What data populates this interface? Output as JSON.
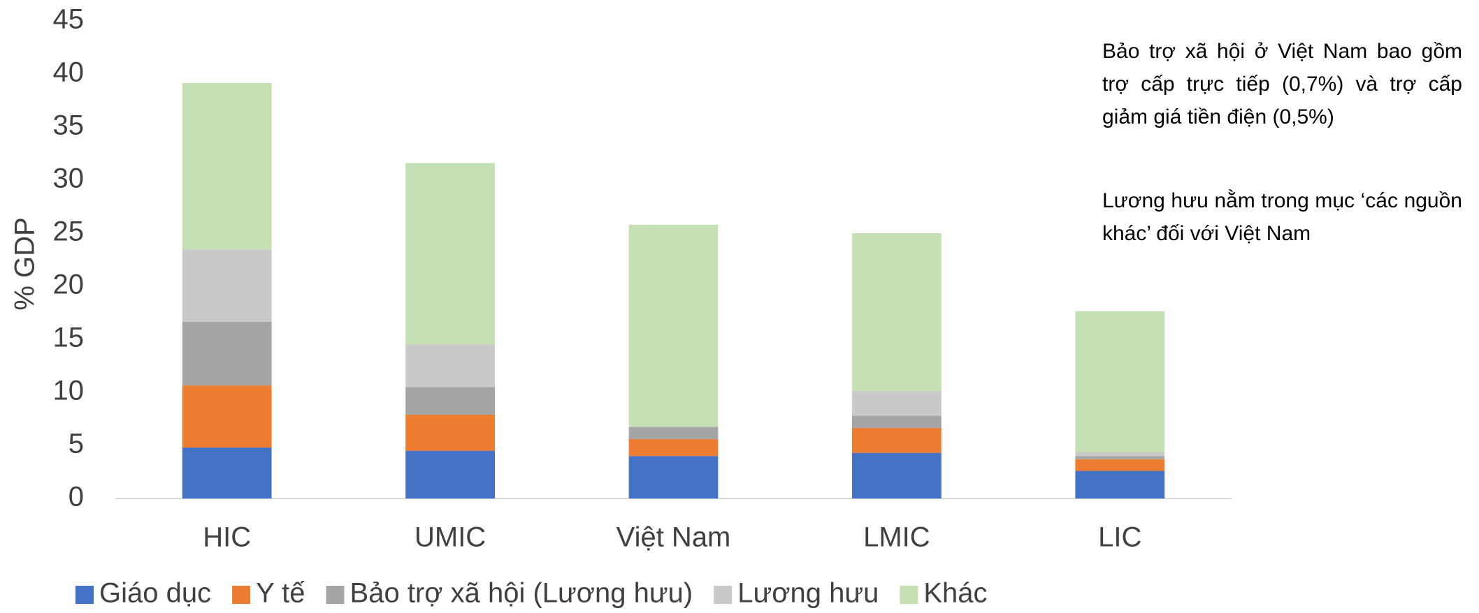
{
  "chart_data": {
    "type": "stacked-bar",
    "y_label": "% GDP",
    "categories": [
      "HIC",
      "UMIC",
      "Việt Nam",
      "LMIC",
      "LIC"
    ],
    "series": [
      {
        "name": "Giáo dục",
        "color": "#4472c4",
        "values": [
          4.8,
          4.5,
          4.0,
          4.3,
          2.6
        ]
      },
      {
        "name": "Y tế",
        "color": "#ed7d31",
        "values": [
          5.85,
          3.4,
          1.6,
          2.35,
          1.1
        ]
      },
      {
        "name": "Bảo trợ xã hội (Lương hưu)",
        "color": "#a5a5a5",
        "values": [
          6.0,
          2.6,
          1.15,
          1.15,
          0.3
        ]
      },
      {
        "name": "Lương hưu",
        "color": "#c9c9c9",
        "values": [
          6.8,
          4.0,
          0,
          2.3,
          0.35
        ]
      },
      {
        "name": "Khác",
        "color": "#c5e0b4",
        "values": [
          15.7,
          17.1,
          19.05,
          14.9,
          13.3
        ]
      }
    ],
    "ylim": [
      0,
      45
    ],
    "yticks": [
      0,
      5,
      10,
      15,
      20,
      25,
      30,
      35,
      40,
      45
    ],
    "grid": false,
    "legend": "bottom",
    "annotations": [
      "Bảo trợ xã hội ở Việt Nam bao gồm trợ cấp trực tiếp (0,7%) và trợ cấp giảm giá tiền điện (0,5%)",
      "Lương hưu nằm trong mục ‘các nguồn khác’ đối với Việt Nam"
    ]
  }
}
